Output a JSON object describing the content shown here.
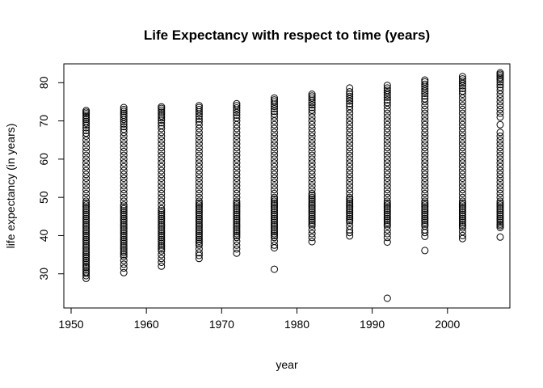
{
  "chart_data": {
    "type": "scatter",
    "title": "Life Expectancy with respect to time (years)",
    "xlabel": "year",
    "ylabel": "life expectancy (in years)",
    "xlim": [
      1950,
      2007
    ],
    "ylim": [
      23.6,
      82.6
    ],
    "x_ticks": [
      1950,
      1960,
      1970,
      1980,
      1990,
      2000
    ],
    "y_ticks": [
      30,
      40,
      50,
      60,
      70,
      80
    ],
    "grid": false,
    "legend": "none",
    "marker": "open-circle",
    "point_color": "#000000",
    "series": [
      {
        "x": 1952,
        "y": [
          28.8,
          29.5,
          30.1,
          30.5,
          31.0,
          31.6,
          32.0,
          32.5,
          33.0,
          33.5,
          34.0,
          34.5,
          35.0,
          35.5,
          36.0,
          36.5,
          37.0,
          37.5,
          38.0,
          38.5,
          39.0,
          39.5,
          40.0,
          40.5,
          41.0,
          41.5,
          42.0,
          42.5,
          43.0,
          43.5,
          44.0,
          44.5,
          45.0,
          45.5,
          46.0,
          46.5,
          47.0,
          47.5,
          48.0,
          48.5,
          49.0,
          50.0,
          51.0,
          52.0,
          53.0,
          54.0,
          55.0,
          56.0,
          57.0,
          58.0,
          59.0,
          60.0,
          61.0,
          62.0,
          63.0,
          64.0,
          65.0,
          66.0,
          66.8,
          67.5,
          68.2,
          68.9,
          69.4,
          69.9,
          70.4,
          70.9,
          71.4,
          71.9,
          72.3,
          72.7
        ]
      },
      {
        "x": 1957,
        "y": [
          30.3,
          31.5,
          32.5,
          33.5,
          34.5,
          35.0,
          35.5,
          36.0,
          36.5,
          37.0,
          37.5,
          38.0,
          38.5,
          39.0,
          39.5,
          40.0,
          40.5,
          41.0,
          41.5,
          42.0,
          42.5,
          43.0,
          43.5,
          44.0,
          44.5,
          45.0,
          45.5,
          46.0,
          46.5,
          47.0,
          47.5,
          48.0,
          49.0,
          50.0,
          51.0,
          52.0,
          53.0,
          54.0,
          55.0,
          56.0,
          57.0,
          58.0,
          59.0,
          60.0,
          61.0,
          62.0,
          63.0,
          64.0,
          65.0,
          66.0,
          67.0,
          67.8,
          68.5,
          69.2,
          69.8,
          70.4,
          71.0,
          71.5,
          72.0,
          72.5,
          73.0,
          73.5
        ]
      },
      {
        "x": 1962,
        "y": [
          32.0,
          33.0,
          34.0,
          35.0,
          36.0,
          36.5,
          37.0,
          37.5,
          38.0,
          38.5,
          39.0,
          39.5,
          40.0,
          40.5,
          41.0,
          41.5,
          42.0,
          42.5,
          43.0,
          43.5,
          44.0,
          44.5,
          45.0,
          45.5,
          46.0,
          46.5,
          47.0,
          48.0,
          49.0,
          50.0,
          51.0,
          52.0,
          53.0,
          54.0,
          55.0,
          56.0,
          57.0,
          58.0,
          59.0,
          60.0,
          61.0,
          62.0,
          63.0,
          64.0,
          65.0,
          66.0,
          67.0,
          68.0,
          68.8,
          69.5,
          70.2,
          70.8,
          71.3,
          71.8,
          72.3,
          72.8,
          73.3,
          73.7
        ]
      },
      {
        "x": 1967,
        "y": [
          34.0,
          34.8,
          35.5,
          36.5,
          37.5,
          38.0,
          38.5,
          39.0,
          39.5,
          40.0,
          40.5,
          41.0,
          41.5,
          42.0,
          42.5,
          43.0,
          43.5,
          44.0,
          44.5,
          45.0,
          45.5,
          46.0,
          46.5,
          47.0,
          47.5,
          48.0,
          48.5,
          49.0,
          50.0,
          51.0,
          52.0,
          53.0,
          54.0,
          55.0,
          56.0,
          57.0,
          58.0,
          59.0,
          60.0,
          61.0,
          62.0,
          63.0,
          64.0,
          65.0,
          66.0,
          67.0,
          68.0,
          69.0,
          69.8,
          70.5,
          71.2,
          71.8,
          72.4,
          73.0,
          73.5,
          74.0
        ]
      },
      {
        "x": 1972,
        "y": [
          35.4,
          36.5,
          37.5,
          38.5,
          39.5,
          40.0,
          40.5,
          41.0,
          41.5,
          42.0,
          42.5,
          43.0,
          43.5,
          44.0,
          44.5,
          45.0,
          45.5,
          46.0,
          46.5,
          47.0,
          47.5,
          48.0,
          48.5,
          49.0,
          50.0,
          51.0,
          52.0,
          53.0,
          54.0,
          55.0,
          56.0,
          57.0,
          58.0,
          59.0,
          60.0,
          61.0,
          62.0,
          63.0,
          64.0,
          65.0,
          66.0,
          67.0,
          68.0,
          69.0,
          70.0,
          70.8,
          71.5,
          72.2,
          72.8,
          73.4,
          74.0,
          74.5
        ]
      },
      {
        "x": 1977,
        "y": [
          31.2,
          36.8,
          37.5,
          38.5,
          39.5,
          40.0,
          40.5,
          41.0,
          41.5,
          42.0,
          42.5,
          43.0,
          43.5,
          44.0,
          44.5,
          45.0,
          45.5,
          46.0,
          46.5,
          47.0,
          47.5,
          48.0,
          48.5,
          49.0,
          49.5,
          50.0,
          51.0,
          52.0,
          53.0,
          54.0,
          55.0,
          56.0,
          57.0,
          58.0,
          59.0,
          60.0,
          61.0,
          62.0,
          63.0,
          64.0,
          65.0,
          66.0,
          67.0,
          68.0,
          69.0,
          70.0,
          71.0,
          71.8,
          72.5,
          73.2,
          73.8,
          74.4,
          75.0,
          75.5,
          76.0
        ]
      },
      {
        "x": 1982,
        "y": [
          38.4,
          39.5,
          40.5,
          41.5,
          42.5,
          43.0,
          43.5,
          44.0,
          44.5,
          45.0,
          45.5,
          46.0,
          46.5,
          47.0,
          47.5,
          48.0,
          48.5,
          49.0,
          49.5,
          50.0,
          50.5,
          51.0,
          52.0,
          53.0,
          54.0,
          55.0,
          56.0,
          57.0,
          58.0,
          59.0,
          60.0,
          61.0,
          62.0,
          63.0,
          64.0,
          65.0,
          66.0,
          67.0,
          68.0,
          69.0,
          70.0,
          71.0,
          72.0,
          72.8,
          73.5,
          74.2,
          74.8,
          75.4,
          76.0,
          76.5,
          77.0
        ]
      },
      {
        "x": 1987,
        "y": [
          39.9,
          40.8,
          41.5,
          42.5,
          43.5,
          44.0,
          44.5,
          45.0,
          45.5,
          46.0,
          46.5,
          47.0,
          47.5,
          48.0,
          48.5,
          49.0,
          49.5,
          50.0,
          51.0,
          52.0,
          53.0,
          54.0,
          55.0,
          56.0,
          57.0,
          58.0,
          59.0,
          60.0,
          61.0,
          62.0,
          63.0,
          64.0,
          65.0,
          66.0,
          67.0,
          68.0,
          69.0,
          70.0,
          71.0,
          72.0,
          73.0,
          73.8,
          74.5,
          75.2,
          75.8,
          76.4,
          77.0,
          77.6,
          78.6
        ]
      },
      {
        "x": 1992,
        "y": [
          23.6,
          38.3,
          39.5,
          40.5,
          41.5,
          42.5,
          43.0,
          43.5,
          44.0,
          44.5,
          45.0,
          45.5,
          46.0,
          46.5,
          47.0,
          47.5,
          48.0,
          48.5,
          49.0,
          50.0,
          51.0,
          52.0,
          53.0,
          54.0,
          55.0,
          56.0,
          57.0,
          58.0,
          59.0,
          60.0,
          61.0,
          62.0,
          63.0,
          64.0,
          65.0,
          66.0,
          67.0,
          68.0,
          69.0,
          70.0,
          71.0,
          72.0,
          73.0,
          74.0,
          74.8,
          75.5,
          76.2,
          76.8,
          77.4,
          78.0,
          78.6,
          79.3
        ]
      },
      {
        "x": 1997,
        "y": [
          36.1,
          39.8,
          40.8,
          41.5,
          42.5,
          43.0,
          43.5,
          44.0,
          44.5,
          45.0,
          45.5,
          46.0,
          46.5,
          47.0,
          47.5,
          48.0,
          48.5,
          49.0,
          50.0,
          51.0,
          52.0,
          53.0,
          54.0,
          55.0,
          56.0,
          57.0,
          58.0,
          59.0,
          60.0,
          61.0,
          62.0,
          63.0,
          64.0,
          65.0,
          66.0,
          67.0,
          68.0,
          69.0,
          70.0,
          71.0,
          72.0,
          73.0,
          74.0,
          75.0,
          75.8,
          76.5,
          77.2,
          77.8,
          78.4,
          79.0,
          79.6,
          80.2,
          80.7
        ]
      },
      {
        "x": 2002,
        "y": [
          39.2,
          40.0,
          41.0,
          42.0,
          42.5,
          43.0,
          43.5,
          44.0,
          44.5,
          45.0,
          45.5,
          46.0,
          46.5,
          47.0,
          47.5,
          48.0,
          48.5,
          49.0,
          50.0,
          51.0,
          52.0,
          53.0,
          54.0,
          55.0,
          56.0,
          57.0,
          58.0,
          59.0,
          60.0,
          61.0,
          62.0,
          63.0,
          64.0,
          65.0,
          66.0,
          67.0,
          68.0,
          69.0,
          70.0,
          71.0,
          72.0,
          73.0,
          74.0,
          75.0,
          76.0,
          77.0,
          77.8,
          78.5,
          79.2,
          79.8,
          80.4,
          81.0,
          81.6
        ]
      },
      {
        "x": 2007,
        "y": [
          39.6,
          42.1,
          42.6,
          43.0,
          43.5,
          44.0,
          44.5,
          45.0,
          45.5,
          46.0,
          46.5,
          47.0,
          47.5,
          48.0,
          48.5,
          49.0,
          50.0,
          51.0,
          52.0,
          53.0,
          54.0,
          55.0,
          56.0,
          57.0,
          58.0,
          59.0,
          60.0,
          61.0,
          62.0,
          63.0,
          64.0,
          65.0,
          66.0,
          67.0,
          69.0,
          71.0,
          72.0,
          73.0,
          74.0,
          75.0,
          76.0,
          77.0,
          78.0,
          78.8,
          79.5,
          80.2,
          80.8,
          81.3,
          81.8,
          82.2,
          82.6
        ]
      }
    ]
  }
}
